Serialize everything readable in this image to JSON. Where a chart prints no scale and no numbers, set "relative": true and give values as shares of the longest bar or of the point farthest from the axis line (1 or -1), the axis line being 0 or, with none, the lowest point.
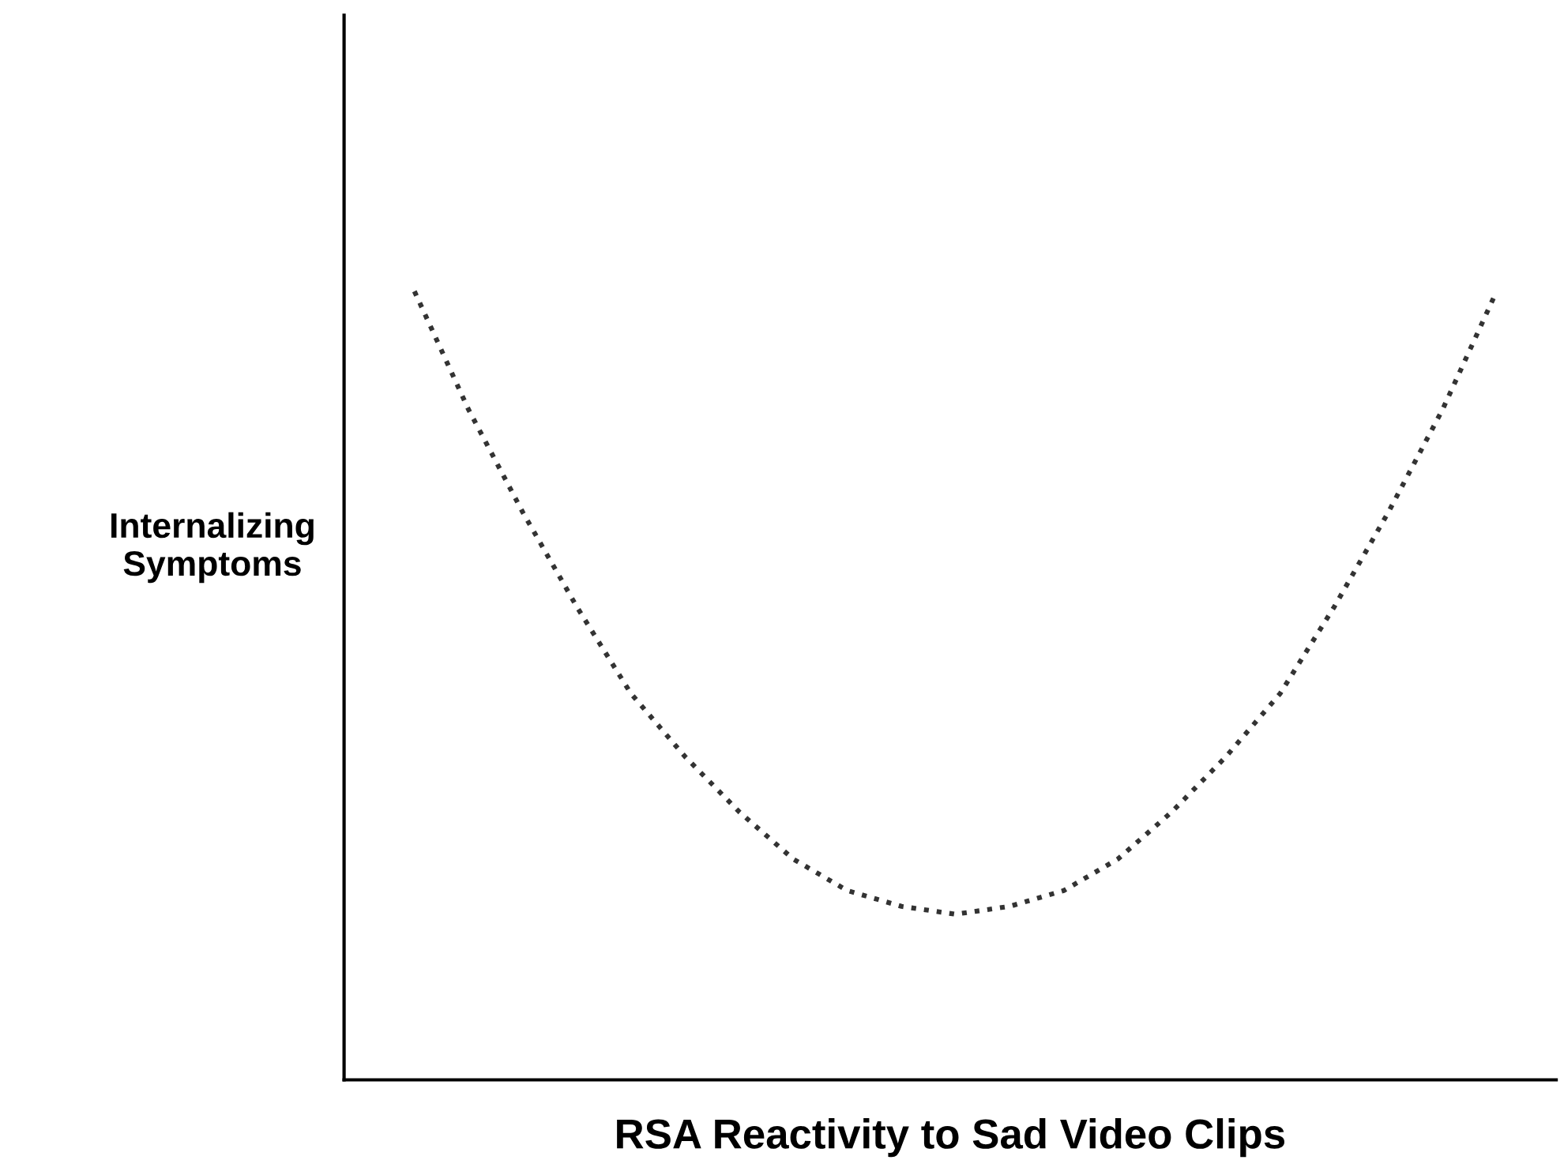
{
  "chart_data": {
    "type": "line",
    "relative": true,
    "xlabel": "RSA Reactivity to Sad Video Clips",
    "ylabel": "Internalizing\nSymptoms",
    "categories": [
      null,
      null,
      null,
      null,
      null,
      null,
      null,
      null,
      null,
      null,
      null,
      null,
      null,
      null,
      null,
      null,
      null,
      null,
      null,
      null,
      null
    ],
    "series": [
      {
        "color": "#333333",
        "values": [
          1.0,
          0.85,
          0.72,
          0.6,
          0.49,
          0.41,
          0.34,
          0.28,
          0.24,
          0.22,
          0.21,
          0.22,
          0.24,
          0.28,
          0.34,
          0.41,
          0.49,
          0.6,
          0.72,
          0.85,
          1.0
        ]
      }
    ],
    "line_style": "dotted",
    "grid": false,
    "legend": false
  }
}
